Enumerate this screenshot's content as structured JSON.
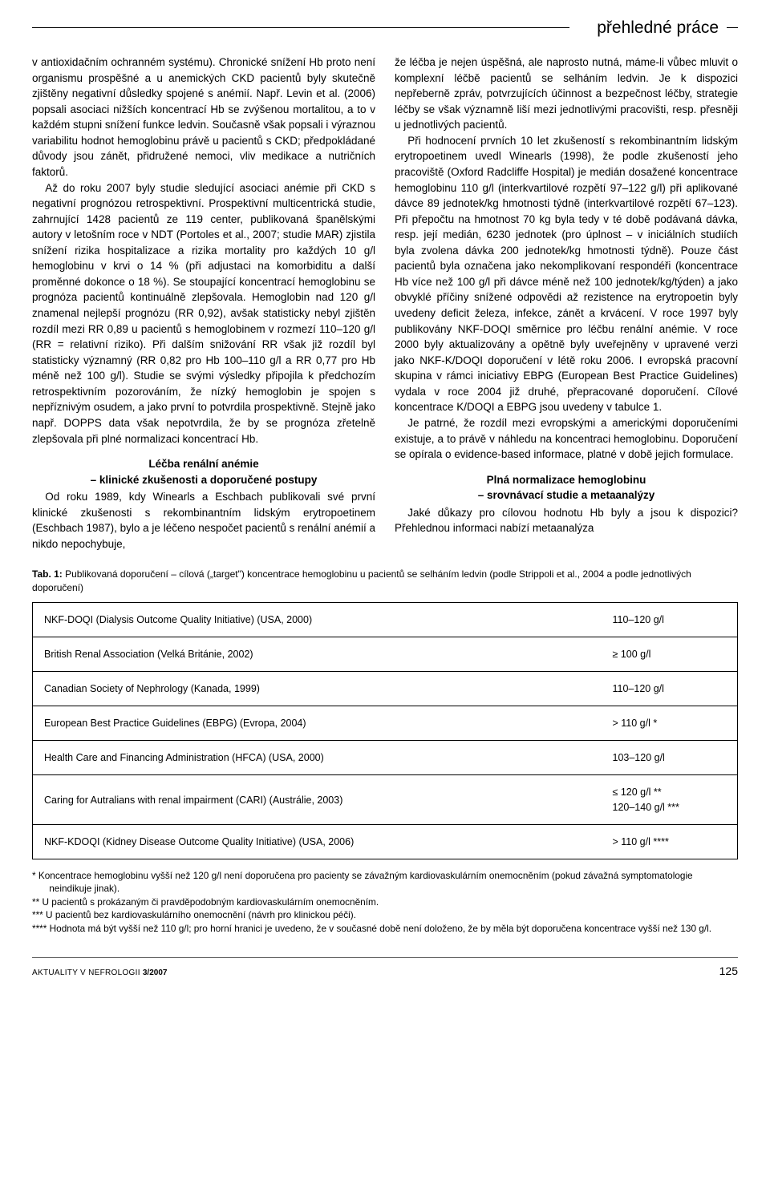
{
  "header": {
    "section_title": "přehledné práce"
  },
  "left_column": {
    "p1": "v antioxidačním ochranném systému). Chronické snížení Hb proto není organismu prospěšné a u anemických CKD pacientů byly skutečně zjištěny negativní důsledky spojené s anémií. Např. Levin et al. (2006) popsali asociaci nižších koncentrací Hb se zvýšenou mortalitou, a to v každém stupni snížení funkce ledvin. Současně však popsali i výraznou variabilitu hodnot hemoglobinu právě u pacientů s CKD; předpokládané důvody jsou zánět, přidružené nemoci, vliv medikace a nutričních faktorů.",
    "p2": "Až do roku 2007 byly studie sledující asociaci anémie při CKD s negativní prognózou retrospektivní. Prospektivní multicentrická studie, zahrnující 1428 pacientů ze 119 center, publikovaná španělskými autory v letošním roce v NDT (Portoles et al., 2007; studie MAR) zjistila snížení rizika hospitalizace a rizika mortality pro každých 10 g/l hemoglobinu v krvi o 14 % (při adjustaci na komorbiditu a další proměnné dokonce o 18 %). Se stoupající koncentrací hemoglobinu se prognóza pacientů kontinuálně zlepšovala. Hemoglobin nad 120 g/l znamenal nejlepší prognózu (RR 0,92), avšak statisticky nebyl zjištěn rozdíl mezi RR 0,89 u pacientů s hemoglobinem v rozmezí 110–120 g/l (RR = relativní riziko). Při dalším snižování RR však již rozdíl byl statisticky významný (RR 0,82 pro Hb 100–110 g/l a RR 0,77 pro Hb méně než 100 g/l). Studie se svými výsledky připojila k předchozím retrospektivním pozorováním, že nízký hemoglobin je spojen s nepříznivým osudem, a jako první to potvrdila prospektivně. Stejně jako např. DOPPS data však nepotvrdila, že by se prognóza zřetelně zlepšovala při plné normalizaci koncentrací Hb.",
    "h1_line1": "Léčba renální anémie",
    "h1_line2": "– klinické zkušenosti a doporučené postupy",
    "p3": "Od roku 1989, kdy Winearls a Eschbach publikovali své první klinické zkušenosti s rekombinantním lidským erytropoetinem (Eschbach 1987), bylo a je léčeno nespočet pacientů s renální anémií a nikdo nepochybuje,"
  },
  "right_column": {
    "p1": "že léčba je nejen úspěšná, ale naprosto nutná, máme-li vůbec mluvit o komplexní léčbě pacientů se selháním ledvin. Je k dispozici nepřeberně zpráv, potvrzujících účinnost a bezpečnost léčby, strategie léčby se však významně liší mezi jednotlivými pracovišti, resp. přesněji u jednotlivých pacientů.",
    "p2": "Při hodnocení prvních 10 let zkušeností s rekombinantním lidským erytropoetinem uvedl Winearls (1998), že podle zkušeností jeho pracoviště (Oxford Radcliffe Hospital) je medián dosažené koncentrace hemoglobinu 110 g/l (interkvartilové rozpětí 97–122 g/l) při aplikované dávce 89 jednotek/kg hmotnosti týdně (interkvartilové rozpětí 67–123). Při přepočtu na hmotnost 70 kg byla tedy v té době podávaná dávka, resp. její medián, 6230 jednotek (pro úplnost – v iniciálních studiích byla zvolena dávka 200 jednotek/kg hmotnosti týdně). Pouze část pacientů byla označena jako nekomplikovaní respondéři (koncentrace Hb více než 100 g/l při dávce méně než 100 jednotek/kg/týden) a jako obvyklé příčiny snížené odpovědi až rezistence na erytropoetin byly uvedeny deficit železa, infekce, zánět a krvácení. V roce 1997 byly publikovány NKF-DOQI směrnice pro léčbu renální anémie. V roce 2000 byly aktualizovány a opětně byly uveřejněny v upravené verzi jako NKF-K/DOQI doporučení v létě roku 2006. I evropská pracovní skupina v rámci iniciativy EBPG (European Best Practice Guidelines) vydala v roce 2004 již druhé, přepracované doporučení. Cílové koncentrace K/DOQI a EBPG jsou uvedeny v tabulce 1.",
    "p3": "Je patrné, že rozdíl mezi evropskými a americkými doporučeními existuje, a to právě v náhledu na koncentraci hemoglobinu. Doporučení se opírala o evidence-based informace, platné v době jejich formulace.",
    "h1_line1": "Plná normalizace hemoglobinu",
    "h1_line2": "– srovnávací studie a metaanalýzy",
    "p4": "Jaké důkazy pro cílovou hodnotu Hb byly a jsou k dispozici? Přehlednou informaci nabízí metaanalýza"
  },
  "table": {
    "caption_bold": "Tab. 1:",
    "caption": " Publikovaná doporučení – cílová („target\") koncentrace hemoglobinu u pacientů se selháním ledvin (podle Strippoli et al., 2004 a podle jednotlivých doporučení)",
    "rows": [
      {
        "name": "NKF-DOQI (Dialysis Outcome Quality Initiative) (USA, 2000)",
        "value": "110–120 g/l"
      },
      {
        "name": "British Renal Association (Velká Británie, 2002)",
        "value": "≥ 100 g/l"
      },
      {
        "name": "Canadian Society of Nephrology (Kanada, 1999)",
        "value": "110–120 g/l"
      },
      {
        "name": "European Best Practice Guidelines (EBPG) (Evropa, 2004)",
        "value": "> 110 g/l *"
      },
      {
        "name": "Health Care and Financing Administration (HFCA) (USA, 2000)",
        "value": "103–120 g/l"
      },
      {
        "name": "Caring for Autralians with renal impairment (CARI) (Austrálie, 2003)",
        "value": "≤ 120 g/l **\n120–140 g/l ***"
      },
      {
        "name": "NKF-KDOQI (Kidney Disease Outcome Quality Initiative) (USA, 2006)",
        "value": "> 110 g/l ****"
      }
    ]
  },
  "footnotes": {
    "f1": "* Koncentrace hemoglobinu vyšší než 120 g/l není doporučena pro pacienty se závažným kardiovaskulárním onemocněním (pokud závažná symptomatologie neindikuje jinak).",
    "f2": "** U pacientů s prokázaným či pravděpodobným kardiovaskulárním onemocněním.",
    "f3": "*** U pacientů bez kardiovaskulárního onemocnění (návrh pro klinickou péči).",
    "f4": "**** Hodnota má být vyšší než 110 g/l; pro horní hranici je uvedeno, že v současné době není doloženo, že by měla být doporučena koncentrace vyšší než 130 g/l."
  },
  "footer": {
    "journal": "AKTUALITY V NEFROLOGII ",
    "issue": "3/2007",
    "page": "125"
  }
}
